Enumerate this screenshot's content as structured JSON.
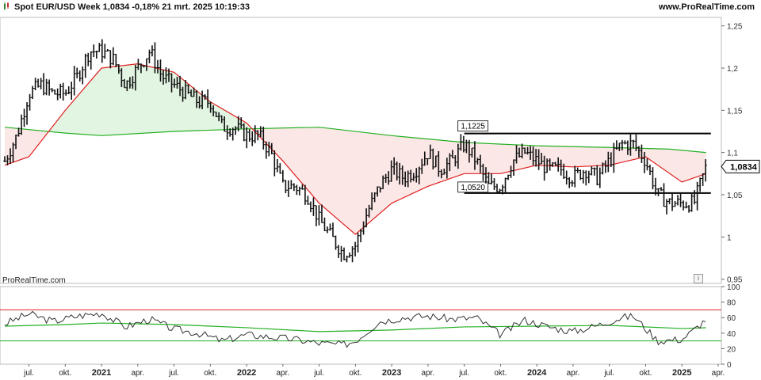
{
  "header": {
    "title": "Spot EUR/USD Week 1,0834 -0,18% 21 mrt. 2025 10:19:33",
    "source": "www.ProRealTime.com"
  },
  "watermark": "ProRealTime.com",
  "info_icon": "i",
  "colors": {
    "price": "#111111",
    "ma_short": "#e02020",
    "ma_long": "#22b022",
    "fill_above": "rgba(60,190,60,0.15)",
    "fill_below": "rgba(230,70,70,0.13)",
    "rsi": "#333333",
    "rsi_upper": "#e02020",
    "rsi_lower": "#22b022",
    "level_line": "#000000"
  },
  "chart_data": [
    {
      "type": "line",
      "title": "Spot EUR/USD Week",
      "y_axis_side": "right",
      "ylim": [
        0.945,
        1.26
      ],
      "y_ticks": [
        0.95,
        1,
        1.05,
        1.1,
        1.15,
        1.2,
        1.25
      ],
      "y_tick_labels": [
        "0,95",
        "1",
        "1,05",
        "1,1",
        "1,15",
        "1,2",
        "1,25"
      ],
      "x_ticks": [
        "jul.",
        "okt.",
        "2021",
        "apr.",
        "jul.",
        "okt.",
        "2022",
        "apr.",
        "jul.",
        "okt.",
        "2023",
        "apr.",
        "jul.",
        "okt.",
        "2024",
        "apr.",
        "jul.",
        "okt.",
        "2025",
        "apr."
      ],
      "x_ticks_bold": [
        "2021",
        "2022",
        "2023",
        "2024",
        "2025"
      ],
      "x_range": [
        "2020-05",
        "2025-04"
      ],
      "last_price": 1.0834,
      "last_price_label": "1,0834",
      "annotations": [
        {
          "label": "1,1225",
          "value": 1.1225,
          "from": "2023-07",
          "to": "2025-03"
        },
        {
          "label": "1,0520",
          "value": 1.052,
          "from": "2023-07",
          "to": "2025-03"
        }
      ],
      "series": [
        {
          "style": "ohlc-bars",
          "points": [
            [
              "2020-05",
              1.09
            ],
            [
              "2020-06",
              1.12
            ],
            [
              "2020-07",
              1.17
            ],
            [
              "2020-08",
              1.18
            ],
            [
              "2020-09",
              1.17
            ],
            [
              "2020-10",
              1.17
            ],
            [
              "2020-11",
              1.19
            ],
            [
              "2020-12",
              1.22
            ],
            [
              "2021-01",
              1.22
            ],
            [
              "2021-02",
              1.21
            ],
            [
              "2021-03",
              1.18
            ],
            [
              "2021-04",
              1.2
            ],
            [
              "2021-05",
              1.22
            ],
            [
              "2021-06",
              1.19
            ],
            [
              "2021-07",
              1.18
            ],
            [
              "2021-08",
              1.17
            ],
            [
              "2021-09",
              1.16
            ],
            [
              "2021-10",
              1.16
            ],
            [
              "2021-11",
              1.13
            ],
            [
              "2021-12",
              1.13
            ],
            [
              "2022-01",
              1.12
            ],
            [
              "2022-02",
              1.12
            ],
            [
              "2022-03",
              1.1
            ],
            [
              "2022-04",
              1.06
            ],
            [
              "2022-05",
              1.06
            ],
            [
              "2022-06",
              1.05
            ],
            [
              "2022-07",
              1.02
            ],
            [
              "2022-08",
              1.0
            ],
            [
              "2022-09",
              0.98
            ],
            [
              "2022-10",
              0.99
            ],
            [
              "2022-11",
              1.03
            ],
            [
              "2022-12",
              1.06
            ],
            [
              "2023-01",
              1.08
            ],
            [
              "2023-02",
              1.07
            ],
            [
              "2023-03",
              1.08
            ],
            [
              "2023-04",
              1.1
            ],
            [
              "2023-05",
              1.08
            ],
            [
              "2023-06",
              1.09
            ],
            [
              "2023-07",
              1.11
            ],
            [
              "2023-08",
              1.09
            ],
            [
              "2023-09",
              1.06
            ],
            [
              "2023-10",
              1.06
            ],
            [
              "2023-11",
              1.09
            ],
            [
              "2023-12",
              1.1
            ],
            [
              "2024-01",
              1.09
            ],
            [
              "2024-02",
              1.08
            ],
            [
              "2024-03",
              1.08
            ],
            [
              "2024-04",
              1.07
            ],
            [
              "2024-05",
              1.08
            ],
            [
              "2024-06",
              1.07
            ],
            [
              "2024-07",
              1.09
            ],
            [
              "2024-08",
              1.11
            ],
            [
              "2024-09",
              1.11
            ],
            [
              "2024-10",
              1.09
            ],
            [
              "2024-11",
              1.05
            ],
            [
              "2024-12",
              1.04
            ],
            [
              "2025-01",
              1.04
            ],
            [
              "2025-02",
              1.04
            ],
            [
              "2025-03",
              1.0834
            ]
          ]
        },
        {
          "style": "line-short-ma",
          "points": [
            [
              "2020-05",
              1.085
            ],
            [
              "2020-07",
              1.095
            ],
            [
              "2020-10",
              1.15
            ],
            [
              "2021-01",
              1.2
            ],
            [
              "2021-04",
              1.205
            ],
            [
              "2021-07",
              1.195
            ],
            [
              "2021-10",
              1.16
            ],
            [
              "2022-01",
              1.135
            ],
            [
              "2022-04",
              1.09
            ],
            [
              "2022-07",
              1.04
            ],
            [
              "2022-10",
              1.003
            ],
            [
              "2023-01",
              1.04
            ],
            [
              "2023-04",
              1.06
            ],
            [
              "2023-07",
              1.075
            ],
            [
              "2023-10",
              1.075
            ],
            [
              "2024-01",
              1.085
            ],
            [
              "2024-04",
              1.083
            ],
            [
              "2024-07",
              1.085
            ],
            [
              "2024-10",
              1.095
            ],
            [
              "2025-01",
              1.065
            ],
            [
              "2025-03",
              1.075
            ]
          ]
        },
        {
          "style": "line-long-ma",
          "points": [
            [
              "2020-05",
              1.13
            ],
            [
              "2020-10",
              1.123
            ],
            [
              "2021-01",
              1.12
            ],
            [
              "2021-07",
              1.125
            ],
            [
              "2022-01",
              1.128
            ],
            [
              "2022-07",
              1.13
            ],
            [
              "2023-01",
              1.12
            ],
            [
              "2023-07",
              1.112
            ],
            [
              "2024-01",
              1.108
            ],
            [
              "2024-07",
              1.106
            ],
            [
              "2024-12",
              1.104
            ],
            [
              "2025-03",
              1.1
            ]
          ]
        }
      ]
    },
    {
      "type": "line",
      "y_axis_side": "right",
      "ylim": [
        0,
        100
      ],
      "y_ticks": [
        0,
        20,
        40,
        60,
        80,
        100
      ],
      "y_tick_labels": [
        "0",
        "20",
        "40",
        "60",
        "80",
        "100"
      ],
      "reference_lines": [
        70,
        30
      ],
      "series": [
        {
          "style": "oscillator",
          "points": [
            [
              "2020-05",
              52
            ],
            [
              "2020-07",
              65
            ],
            [
              "2020-09",
              55
            ],
            [
              "2020-11",
              62
            ],
            [
              "2021-01",
              66
            ],
            [
              "2021-03",
              48
            ],
            [
              "2021-05",
              58
            ],
            [
              "2021-07",
              45
            ],
            [
              "2021-09",
              40
            ],
            [
              "2021-11",
              30
            ],
            [
              "2022-01",
              38
            ],
            [
              "2022-03",
              35
            ],
            [
              "2022-05",
              32
            ],
            [
              "2022-07",
              27
            ],
            [
              "2022-09",
              25
            ],
            [
              "2022-10",
              30
            ],
            [
              "2022-12",
              55
            ],
            [
              "2023-02",
              60
            ],
            [
              "2023-04",
              62
            ],
            [
              "2023-06",
              58
            ],
            [
              "2023-08",
              60
            ],
            [
              "2023-10",
              38
            ],
            [
              "2023-12",
              57
            ],
            [
              "2024-02",
              48
            ],
            [
              "2024-04",
              42
            ],
            [
              "2024-06",
              50
            ],
            [
              "2024-08",
              60
            ],
            [
              "2024-09",
              62
            ],
            [
              "2024-11",
              30
            ],
            [
              "2025-01",
              32
            ],
            [
              "2025-02",
              44
            ],
            [
              "2025-03",
              58
            ]
          ]
        },
        {
          "style": "oscillator-average",
          "points": [
            [
              "2020-05",
              49
            ],
            [
              "2020-10",
              51
            ],
            [
              "2021-01",
              53
            ],
            [
              "2021-07",
              51
            ],
            [
              "2022-01",
              47
            ],
            [
              "2022-07",
              42
            ],
            [
              "2023-01",
              44
            ],
            [
              "2023-07",
              48
            ],
            [
              "2024-01",
              49
            ],
            [
              "2024-07",
              50
            ],
            [
              "2025-01",
              46
            ],
            [
              "2025-03",
              47
            ]
          ]
        }
      ]
    }
  ]
}
